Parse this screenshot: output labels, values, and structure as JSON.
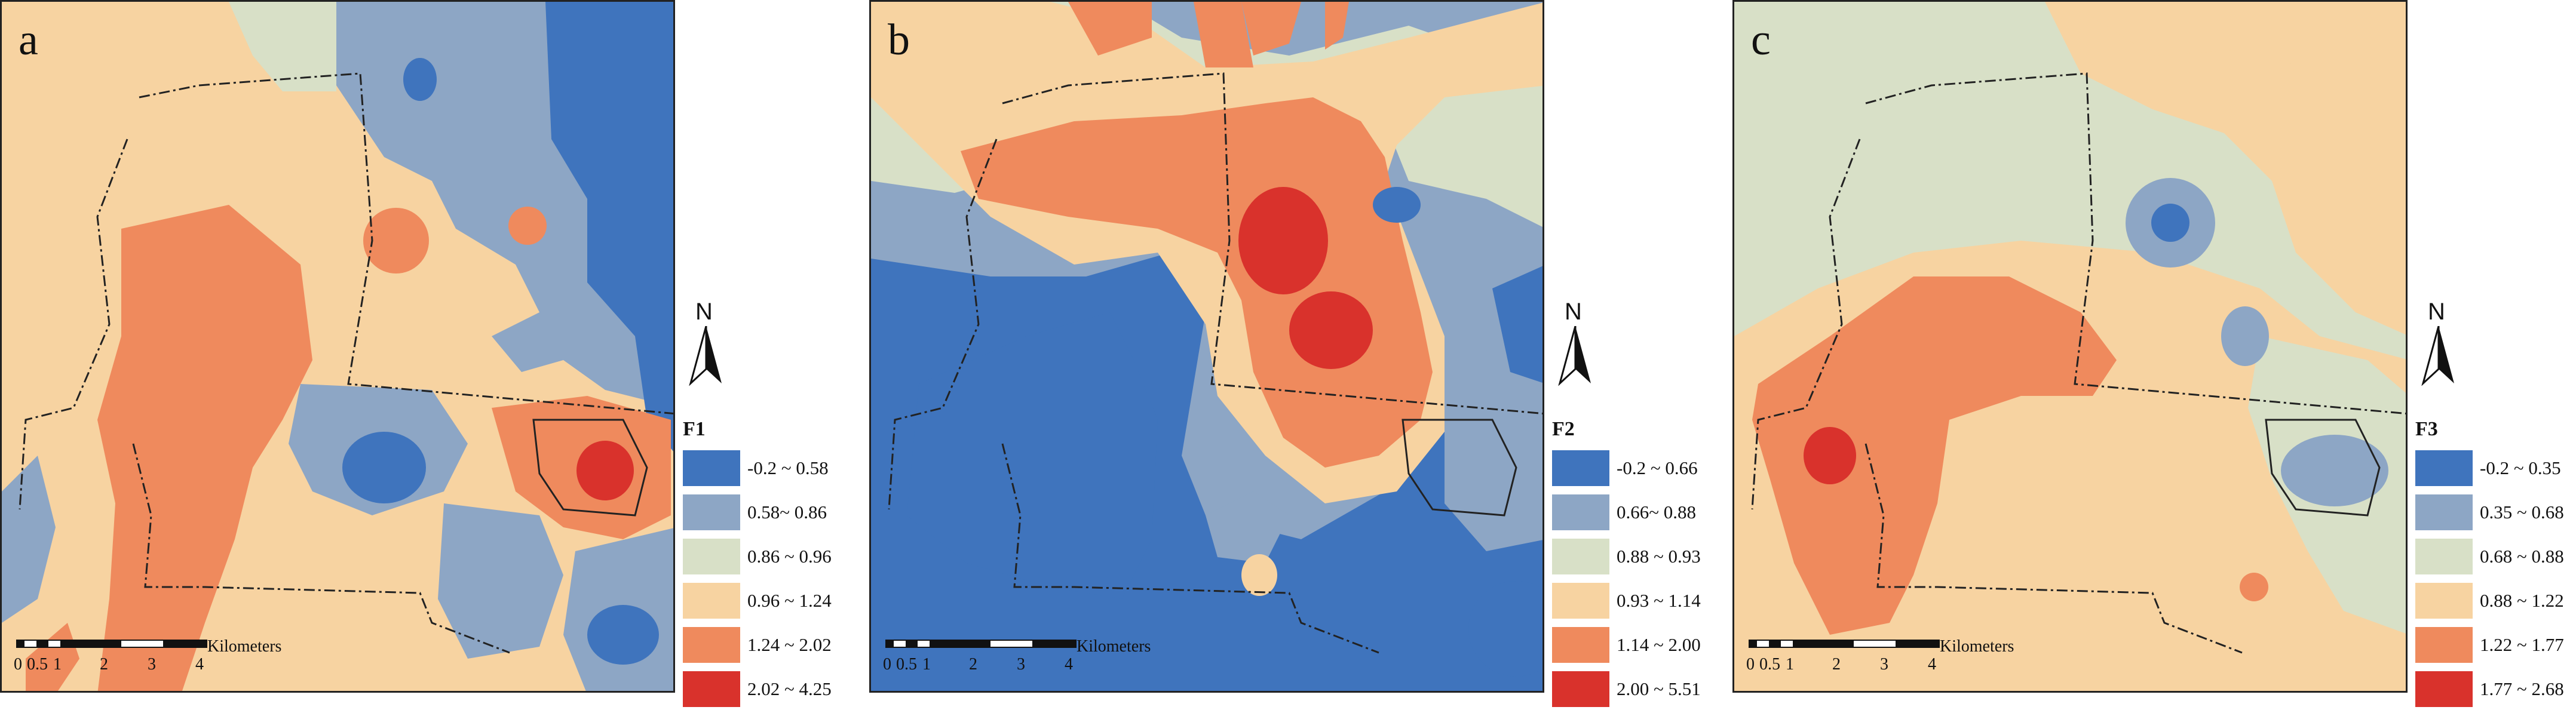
{
  "colors": {
    "c1": "#3f74bd",
    "c2": "#8da6c5",
    "c3": "#d8e0c7",
    "c4": "#f7d3a1",
    "c5": "#ef8a5d",
    "c6": "#d9322c"
  },
  "scalebar": {
    "ticks": [
      "0",
      "0.5",
      "1",
      "2",
      "3",
      "4"
    ],
    "unit": "Kilometers"
  },
  "north_label": "N",
  "panels": [
    {
      "letter": "a",
      "legend_title": "F1",
      "legend": [
        {
          "label": "-0.2 ~ 0.58",
          "color": "#3f74bd"
        },
        {
          "label": "0.58~ 0.86",
          "color": "#8da6c5"
        },
        {
          "label": "0.86 ~ 0.96",
          "color": "#d8e0c7"
        },
        {
          "label": "0.96 ~ 1.24",
          "color": "#f7d3a1"
        },
        {
          "label": "1.24 ~ 2.02",
          "color": "#ef8a5d"
        },
        {
          "label": "2.02 ~ 4.25",
          "color": "#d9322c"
        }
      ]
    },
    {
      "letter": "b",
      "legend_title": "F2",
      "legend": [
        {
          "label": "-0.2 ~ 0.66",
          "color": "#3f74bd"
        },
        {
          "label": "0.66~ 0.88",
          "color": "#8da6c5"
        },
        {
          "label": "0.88 ~ 0.93",
          "color": "#d8e0c7"
        },
        {
          "label": "0.93 ~ 1.14",
          "color": "#f7d3a1"
        },
        {
          "label": "1.14 ~ 2.00",
          "color": "#ef8a5d"
        },
        {
          "label": "2.00 ~ 5.51",
          "color": "#d9322c"
        }
      ]
    },
    {
      "letter": "c",
      "legend_title": "F3",
      "legend": [
        {
          "label": "-0.2 ~ 0.35",
          "color": "#3f74bd"
        },
        {
          "label": "0.35 ~ 0.68",
          "color": "#8da6c5"
        },
        {
          "label": "0.68 ~ 0.88",
          "color": "#d8e0c7"
        },
        {
          "label": "0.88 ~ 1.22",
          "color": "#f7d3a1"
        },
        {
          "label": "1.22 ~ 1.77",
          "color": "#ef8a5d"
        },
        {
          "label": "1.77 ~ 2.68",
          "color": "#d9322c"
        }
      ]
    }
  ]
}
